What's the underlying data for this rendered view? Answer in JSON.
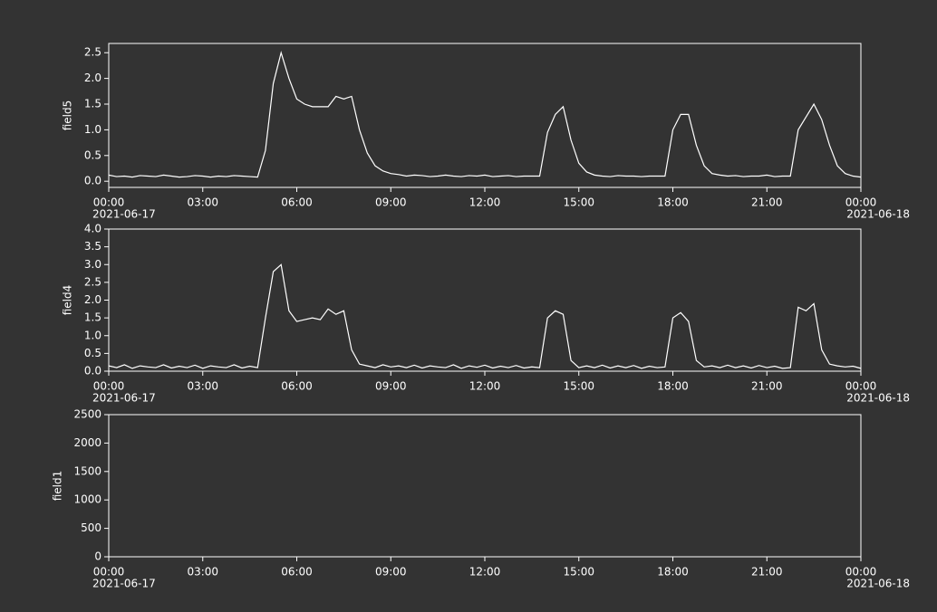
{
  "chart_data": [
    {
      "type": "line",
      "y_label": "field5",
      "start_date": "2021-06-17",
      "end_date": "2021-06-18",
      "xlim": [
        0,
        24
      ],
      "xticks": [
        {
          "value": 0,
          "label": "00:00"
        },
        {
          "value": 3,
          "label": "03:00"
        },
        {
          "value": 6,
          "label": "06:00"
        },
        {
          "value": 9,
          "label": "09:00"
        },
        {
          "value": 12,
          "label": "12:00"
        },
        {
          "value": 15,
          "label": "15:00"
        },
        {
          "value": 18,
          "label": "18:00"
        },
        {
          "value": 21,
          "label": "21:00"
        },
        {
          "value": 24,
          "label": "00:00"
        }
      ],
      "ylim": [
        -0.12,
        2.68
      ],
      "yticks": [
        {
          "value": 0,
          "label": "0.0"
        },
        0.5,
        {
          "value": 1,
          "label": "1.0"
        },
        1.5,
        {
          "value": 2,
          "label": "2.0"
        },
        2.5
      ],
      "x": [
        0,
        0.25,
        0.5,
        0.75,
        1,
        1.25,
        1.5,
        1.75,
        2,
        2.25,
        2.5,
        2.75,
        3,
        3.25,
        3.5,
        3.75,
        4,
        4.25,
        4.5,
        4.75,
        5,
        5.25,
        5.5,
        5.75,
        6,
        6.25,
        6.5,
        6.75,
        7,
        7.25,
        7.5,
        7.75,
        8,
        8.25,
        8.5,
        8.75,
        9,
        9.25,
        9.5,
        9.75,
        10,
        10.25,
        10.5,
        10.75,
        11,
        11.25,
        11.5,
        11.75,
        12,
        12.25,
        12.5,
        12.75,
        13,
        13.25,
        13.5,
        13.75,
        14,
        14.25,
        14.5,
        14.75,
        15,
        15.25,
        15.5,
        15.75,
        16,
        16.25,
        16.5,
        16.75,
        17,
        17.25,
        17.5,
        17.75,
        18,
        18.25,
        18.5,
        18.75,
        19,
        19.25,
        19.5,
        19.75,
        20,
        20.25,
        20.5,
        20.75,
        21,
        21.25,
        21.5,
        21.75,
        22,
        22.25,
        22.5,
        22.75,
        23,
        23.25,
        23.5,
        23.75,
        24
      ],
      "series": [
        {
          "name": "field5",
          "color": "#ffffff",
          "values": [
            0.12,
            0.09,
            0.1,
            0.08,
            0.11,
            0.1,
            0.09,
            0.12,
            0.1,
            0.08,
            0.09,
            0.11,
            0.1,
            0.08,
            0.1,
            0.09,
            0.11,
            0.1,
            0.09,
            0.08,
            0.6,
            1.9,
            2.5,
            2.0,
            1.6,
            1.5,
            1.45,
            1.45,
            1.45,
            1.65,
            1.6,
            1.65,
            1.0,
            0.55,
            0.3,
            0.2,
            0.15,
            0.13,
            0.1,
            0.12,
            0.11,
            0.09,
            0.1,
            0.12,
            0.1,
            0.09,
            0.11,
            0.1,
            0.12,
            0.09,
            0.1,
            0.11,
            0.09,
            0.1,
            0.1,
            0.1,
            0.95,
            1.3,
            1.45,
            0.8,
            0.35,
            0.18,
            0.12,
            0.1,
            0.09,
            0.11,
            0.1,
            0.1,
            0.09,
            0.1,
            0.1,
            0.1,
            1.0,
            1.3,
            1.3,
            0.7,
            0.3,
            0.15,
            0.12,
            0.1,
            0.11,
            0.09,
            0.1,
            0.1,
            0.12,
            0.09,
            0.1,
            0.1,
            1.0,
            1.25,
            1.5,
            1.2,
            0.7,
            0.3,
            0.15,
            0.1,
            0.08
          ]
        }
      ]
    },
    {
      "type": "line",
      "y_label": "field4",
      "start_date": "2021-06-17",
      "end_date": "2021-06-18",
      "xlim": [
        0,
        24
      ],
      "xticks": [
        {
          "value": 0,
          "label": "00:00"
        },
        {
          "value": 3,
          "label": "03:00"
        },
        {
          "value": 6,
          "label": "06:00"
        },
        {
          "value": 9,
          "label": "09:00"
        },
        {
          "value": 12,
          "label": "12:00"
        },
        {
          "value": 15,
          "label": "15:00"
        },
        {
          "value": 18,
          "label": "18:00"
        },
        {
          "value": 21,
          "label": "21:00"
        },
        {
          "value": 24,
          "label": "00:00"
        }
      ],
      "ylim": [
        0,
        4
      ],
      "yticks": [
        {
          "value": 0,
          "label": "0.0"
        },
        0.5,
        {
          "value": 1,
          "label": "1.0"
        },
        1.5,
        {
          "value": 2,
          "label": "2.0"
        },
        2.5,
        {
          "value": 3,
          "label": "3.0"
        },
        3.5,
        {
          "value": 4,
          "label": "4.0"
        }
      ],
      "x": [
        0,
        0.25,
        0.5,
        0.75,
        1,
        1.25,
        1.5,
        1.75,
        2,
        2.25,
        2.5,
        2.75,
        3,
        3.25,
        3.5,
        3.75,
        4,
        4.25,
        4.5,
        4.75,
        5,
        5.25,
        5.5,
        5.75,
        6,
        6.25,
        6.5,
        6.75,
        7,
        7.25,
        7.5,
        7.75,
        8,
        8.25,
        8.5,
        8.75,
        9,
        9.25,
        9.5,
        9.75,
        10,
        10.25,
        10.5,
        10.75,
        11,
        11.25,
        11.5,
        11.75,
        12,
        12.25,
        12.5,
        12.75,
        13,
        13.25,
        13.5,
        13.75,
        14,
        14.25,
        14.5,
        14.75,
        15,
        15.25,
        15.5,
        15.75,
        16,
        16.25,
        16.5,
        16.75,
        17,
        17.25,
        17.5,
        17.75,
        18,
        18.25,
        18.5,
        18.75,
        19,
        19.25,
        19.5,
        19.75,
        20,
        20.25,
        20.5,
        20.75,
        21,
        21.25,
        21.5,
        21.75,
        22,
        22.25,
        22.5,
        22.75,
        23,
        23.25,
        23.5,
        23.75,
        24
      ],
      "series": [
        {
          "name": "field4",
          "color": "#ffffff",
          "values": [
            0.15,
            0.1,
            0.18,
            0.08,
            0.15,
            0.12,
            0.1,
            0.18,
            0.09,
            0.14,
            0.1,
            0.17,
            0.08,
            0.15,
            0.12,
            0.1,
            0.18,
            0.09,
            0.14,
            0.1,
            1.5,
            2.8,
            3.0,
            1.7,
            1.4,
            1.45,
            1.5,
            1.45,
            1.75,
            1.6,
            1.7,
            0.6,
            0.2,
            0.15,
            0.1,
            0.18,
            0.12,
            0.15,
            0.1,
            0.17,
            0.09,
            0.15,
            0.12,
            0.1,
            0.18,
            0.08,
            0.15,
            0.11,
            0.17,
            0.09,
            0.14,
            0.1,
            0.16,
            0.09,
            0.12,
            0.1,
            1.5,
            1.7,
            1.6,
            0.3,
            0.1,
            0.15,
            0.1,
            0.17,
            0.09,
            0.15,
            0.1,
            0.16,
            0.08,
            0.14,
            0.1,
            0.12,
            1.5,
            1.65,
            1.4,
            0.3,
            0.12,
            0.15,
            0.1,
            0.17,
            0.1,
            0.15,
            0.09,
            0.16,
            0.1,
            0.14,
            0.08,
            0.1,
            1.8,
            1.7,
            1.9,
            0.6,
            0.2,
            0.15,
            0.12,
            0.14,
            0.08
          ]
        }
      ]
    },
    {
      "type": "line",
      "y_label": "field1",
      "start_date": "2021-06-17",
      "end_date": "2021-06-18",
      "xlim": [
        0,
        24
      ],
      "xticks": [
        {
          "value": 0,
          "label": "00:00"
        },
        {
          "value": 3,
          "label": "03:00"
        },
        {
          "value": 6,
          "label": "06:00"
        },
        {
          "value": 9,
          "label": "09:00"
        },
        {
          "value": 12,
          "label": "12:00"
        },
        {
          "value": 15,
          "label": "15:00"
        },
        {
          "value": 18,
          "label": "18:00"
        },
        {
          "value": 21,
          "label": "21:00"
        },
        {
          "value": 24,
          "label": "00:00"
        }
      ],
      "ylim": [
        0,
        2500
      ],
      "yticks": [
        0,
        500,
        1000,
        1500,
        2000,
        2500
      ],
      "x": [],
      "series": [
        {
          "name": "field1",
          "color": "#ffffff",
          "values": []
        }
      ]
    }
  ]
}
